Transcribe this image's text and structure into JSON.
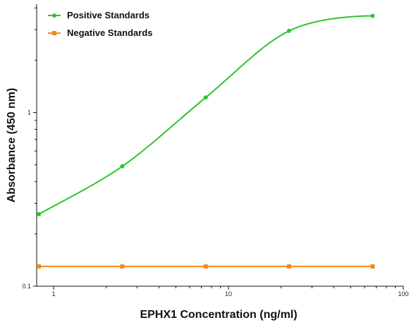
{
  "chart_data": {
    "type": "line",
    "xlabel": "EPHX1 Concentration (ng/ml)",
    "ylabel": "Absorbance (450 nm)",
    "xscale": "log",
    "yscale": "log",
    "xlim": [
      0.8,
      100
    ],
    "ylim": [
      0.1,
      4.2
    ],
    "x_ticks": [
      1,
      10,
      100
    ],
    "x_tick_labels": [
      "1",
      "10",
      "100"
    ],
    "y_ticks": [
      0.1,
      1
    ],
    "y_tick_labels": [
      "0.1",
      "1"
    ],
    "grid": false,
    "legend_position": "top-left",
    "series": [
      {
        "name": "Positive Standards",
        "color": "#2ec52e",
        "marker": "circle",
        "x": [
          0.823,
          2.47,
          7.41,
          22.2,
          66.7
        ],
        "y": [
          0.26,
          0.49,
          1.22,
          2.95,
          3.6
        ]
      },
      {
        "name": "Negative Standards",
        "color": "#f08a1c",
        "marker": "square",
        "x": [
          0.823,
          2.47,
          7.41,
          22.2,
          66.7
        ],
        "y": [
          0.13,
          0.13,
          0.13,
          0.13,
          0.13
        ]
      }
    ]
  }
}
